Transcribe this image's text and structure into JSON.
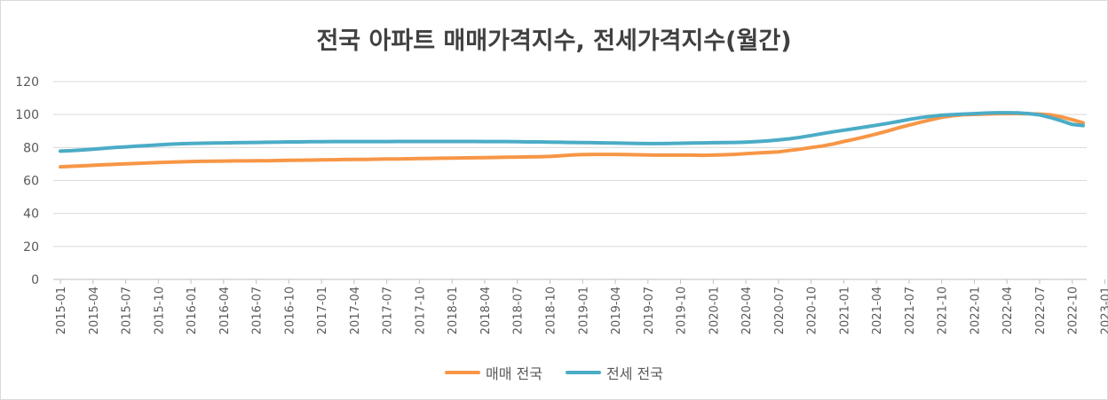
{
  "chart_data": {
    "type": "line",
    "title": "전국 아파트 매매가격지수, 전세가격지수(월간)",
    "xlabel": "",
    "ylabel": "",
    "ylim": [
      0,
      120
    ],
    "yticks": [
      0,
      20,
      40,
      60,
      80,
      100,
      120
    ],
    "grid": true,
    "legend": "bottom",
    "x_tick_labels": [
      "2015-01",
      "2015-04",
      "2015-07",
      "2015-10",
      "2016-01",
      "2016-04",
      "2016-07",
      "2016-10",
      "2017-01",
      "2017-04",
      "2017-07",
      "2017-10",
      "2018-01",
      "2018-04",
      "2018-07",
      "2018-10",
      "2019-01",
      "2019-04",
      "2019-07",
      "2019-10",
      "2020-01",
      "2020-04",
      "2020-07",
      "2020-10",
      "2021-01",
      "2021-04",
      "2021-07",
      "2021-10",
      "2022-01",
      "2022-04",
      "2022-07",
      "2022-10",
      "2023-01"
    ],
    "series": [
      {
        "name": "매매 전국",
        "color": "#f79646",
        "values": [
          68.3,
          68.6,
          68.9,
          69.2,
          69.5,
          69.8,
          70.1,
          70.4,
          70.6,
          70.9,
          71.1,
          71.3,
          71.5,
          71.6,
          71.7,
          71.8,
          71.9,
          71.9,
          72.0,
          72.0,
          72.1,
          72.2,
          72.3,
          72.4,
          72.5,
          72.6,
          72.7,
          72.8,
          72.8,
          72.9,
          73.0,
          73.1,
          73.2,
          73.3,
          73.4,
          73.5,
          73.6,
          73.7,
          73.8,
          73.9,
          74.0,
          74.1,
          74.2,
          74.3,
          74.4,
          74.6,
          75.0,
          75.5,
          75.7,
          75.8,
          75.8,
          75.8,
          75.7,
          75.6,
          75.5,
          75.4,
          75.4,
          75.4,
          75.4,
          75.3,
          75.4,
          75.6,
          75.9,
          76.3,
          76.7,
          77.0,
          77.4,
          78.2,
          79.0,
          80.0,
          80.9,
          82.1,
          83.7,
          85.1,
          86.6,
          88.2,
          90.0,
          91.9,
          93.6,
          95.3,
          96.8,
          98.3,
          99.3,
          99.9,
          100.1,
          100.3,
          100.5,
          100.6,
          100.6,
          100.5,
          100.3,
          99.8,
          98.6,
          96.9,
          95.0
        ]
      },
      {
        "name": "전세 전국",
        "color": "#4bacc6",
        "values": [
          77.8,
          78.1,
          78.5,
          79.0,
          79.5,
          80.0,
          80.4,
          80.8,
          81.2,
          81.6,
          82.0,
          82.3,
          82.5,
          82.6,
          82.7,
          82.8,
          82.9,
          83.0,
          83.1,
          83.2,
          83.3,
          83.4,
          83.4,
          83.5,
          83.5,
          83.6,
          83.6,
          83.6,
          83.6,
          83.6,
          83.6,
          83.7,
          83.7,
          83.7,
          83.7,
          83.7,
          83.7,
          83.7,
          83.7,
          83.6,
          83.6,
          83.6,
          83.5,
          83.4,
          83.4,
          83.3,
          83.2,
          83.1,
          83.0,
          82.9,
          82.8,
          82.7,
          82.6,
          82.5,
          82.4,
          82.4,
          82.5,
          82.6,
          82.7,
          82.8,
          82.9,
          83.0,
          83.1,
          83.3,
          83.6,
          84.0,
          84.6,
          85.3,
          86.2,
          87.3,
          88.4,
          89.5,
          90.5,
          91.5,
          92.5,
          93.5,
          94.6,
          95.8,
          97.0,
          98.1,
          98.9,
          99.6,
          100.0,
          100.3,
          100.6,
          100.9,
          101.1,
          101.1,
          101.0,
          100.6,
          99.8,
          98.2,
          96.2,
          94.0,
          93.3
        ]
      }
    ]
  }
}
